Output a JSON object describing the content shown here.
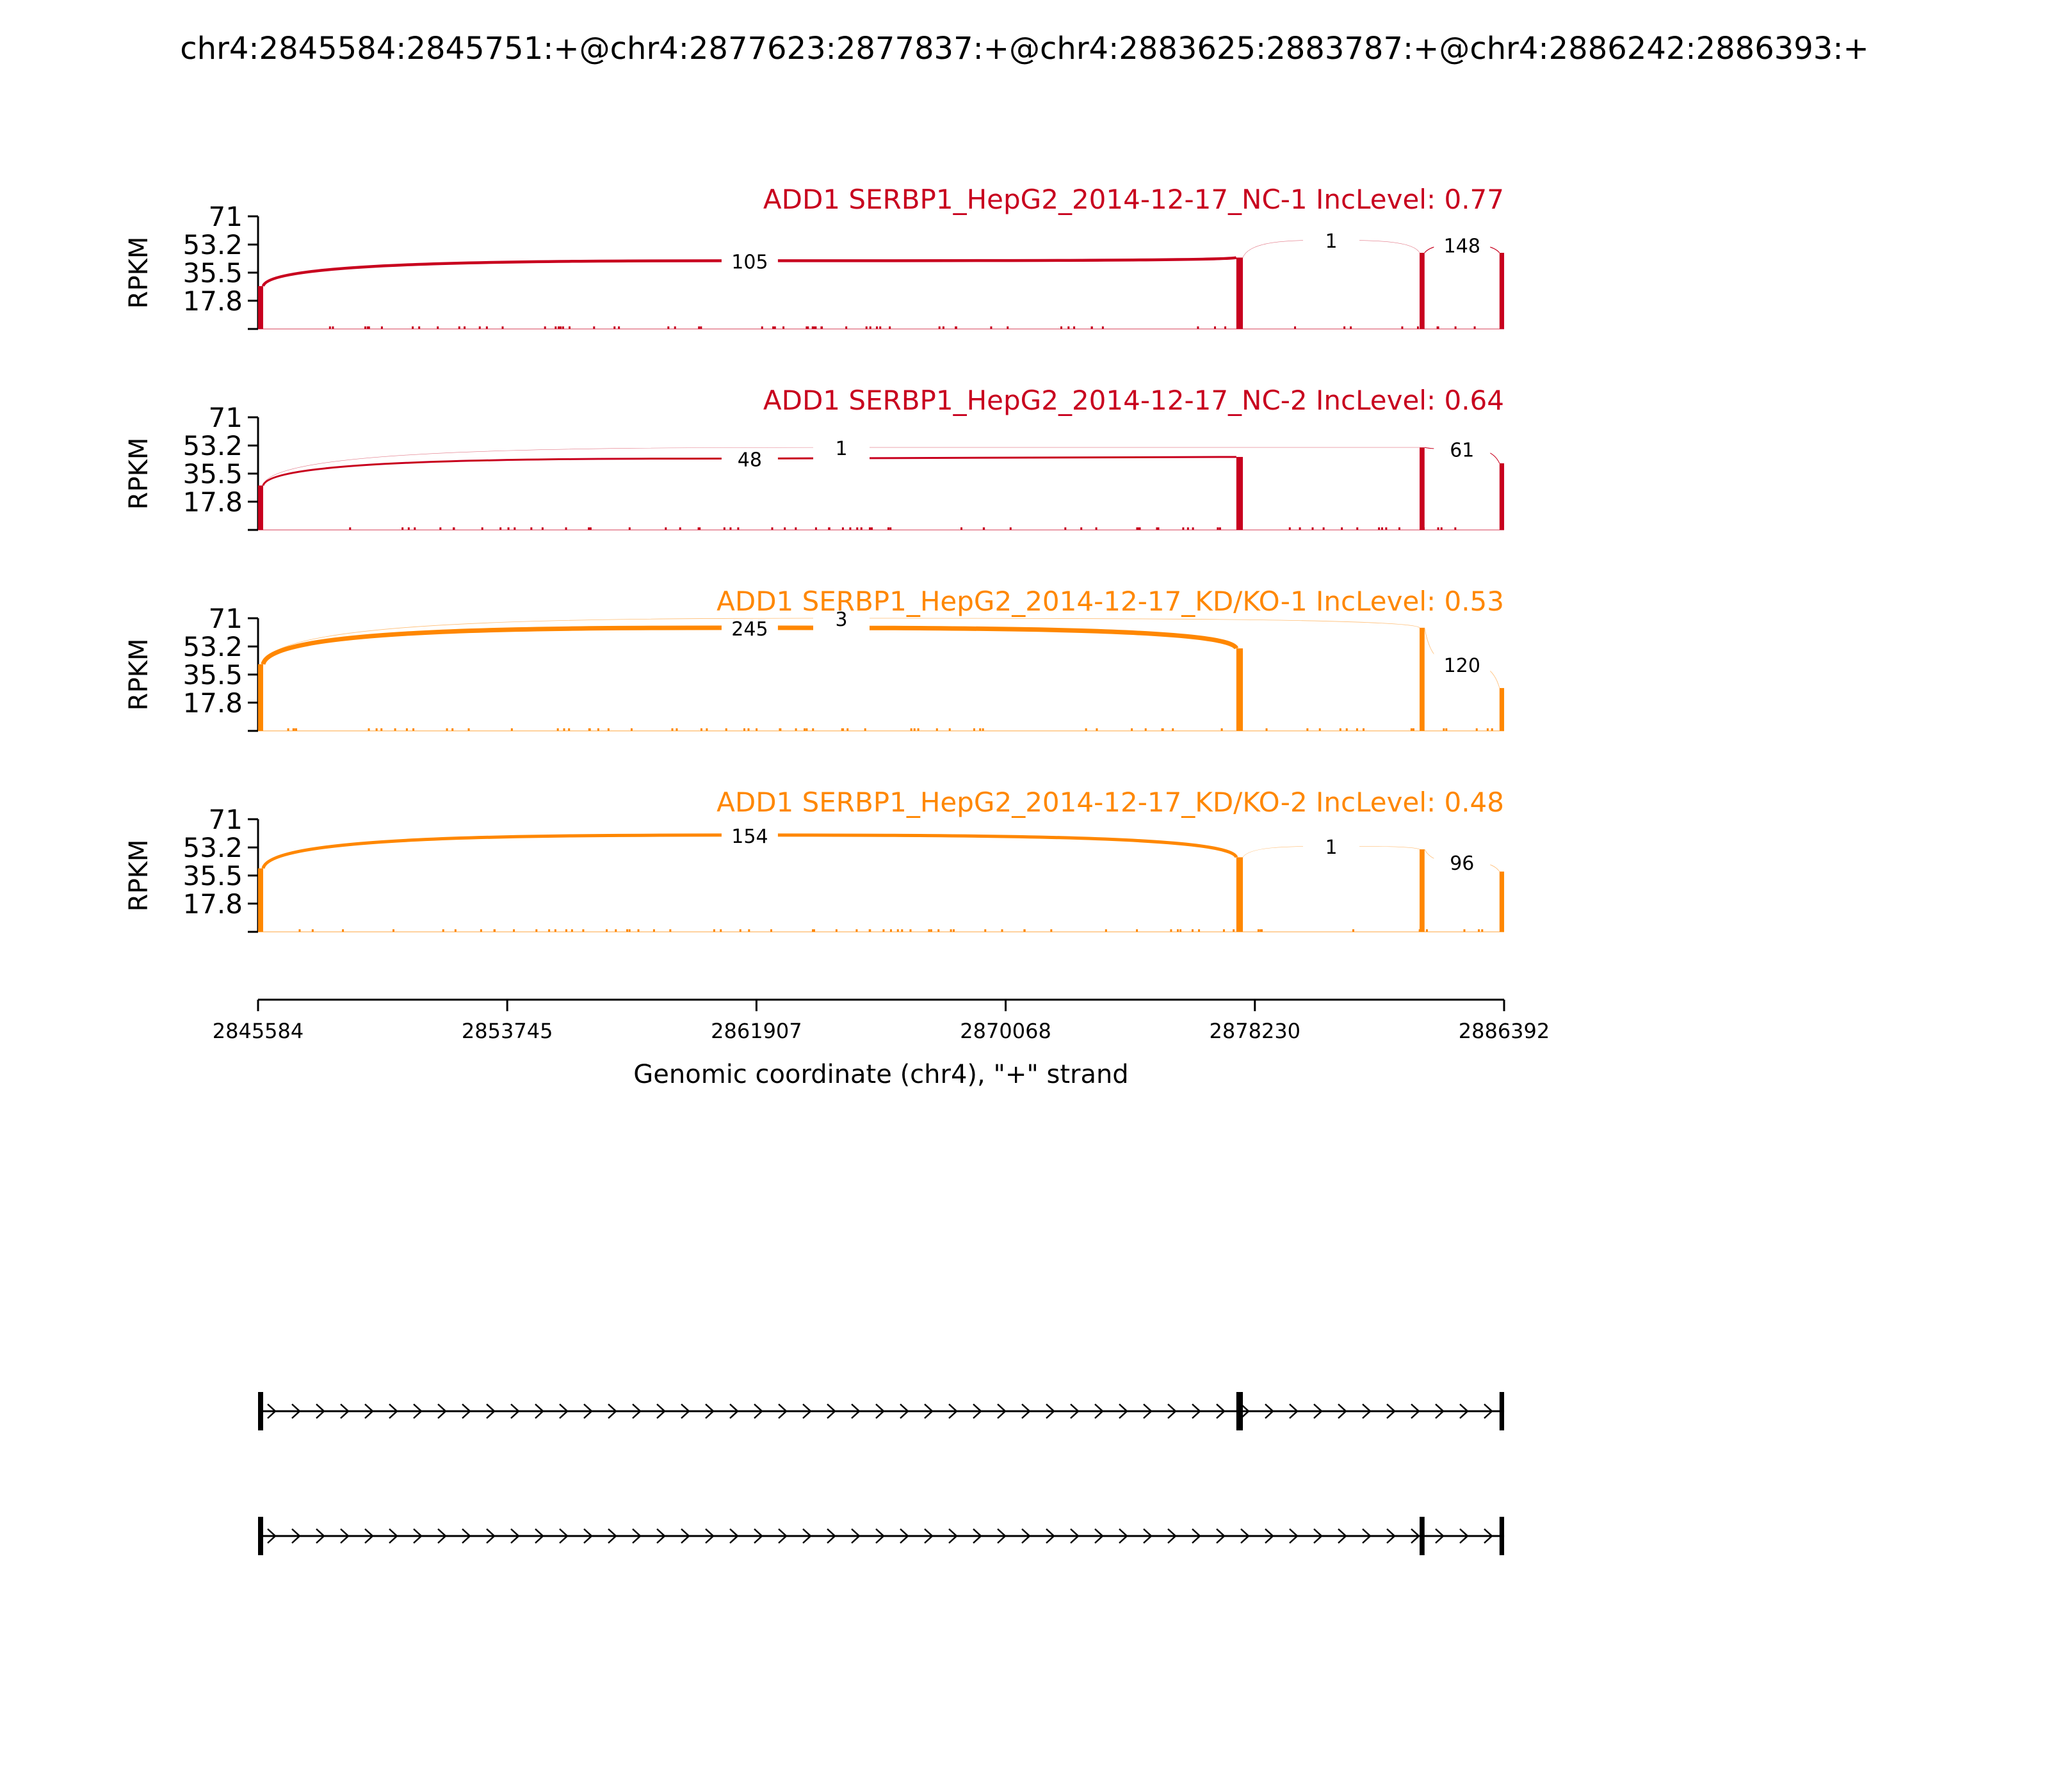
{
  "chart_data": {
    "type": "sashimi",
    "title": "chr4:2845584:2845751:+@chr4:2877623:2877837:+@chr4:2883625:2883787:+@chr4:2886242:2886393:+",
    "ylabel": "RPKM",
    "xlabel": "Genomic coordinate (chr4), \"+\" strand",
    "xlim": [
      2845584,
      2886392
    ],
    "ylim": [
      0,
      71
    ],
    "y_ticks": [
      "71",
      "53.2",
      "35.5",
      "17.8"
    ],
    "x_ticks": [
      "2845584",
      "2853745",
      "2861907",
      "2870068",
      "2878230",
      "2886392"
    ],
    "exons": [
      [
        2845584,
        2845751
      ],
      [
        2877623,
        2877837
      ],
      [
        2883625,
        2883787
      ],
      [
        2886242,
        2886393
      ]
    ],
    "tracks": [
      {
        "label": "ADD1 SERBP1_HepG2_2014-12-17_NC-1 IncLevel: 0.77",
        "color": "#c8001e",
        "exon_heights": [
          27,
          45,
          48,
          48
        ],
        "junctions": [
          {
            "from": 2845751,
            "to": 2877623,
            "count": "105",
            "y": 43,
            "w": 4.5
          },
          {
            "from": 2877837,
            "to": 2883625,
            "count": "1",
            "y": 56,
            "w": 0.6
          },
          {
            "from": 2883787,
            "to": 2886242,
            "count": "148",
            "y": 53,
            "w": 1.2
          }
        ]
      },
      {
        "label": "ADD1 SERBP1_HepG2_2014-12-17_NC-2 IncLevel: 0.64",
        "color": "#c8001e",
        "exon_heights": [
          28,
          46,
          52,
          42
        ],
        "junctions": [
          {
            "from": 2845751,
            "to": 2877623,
            "count": "48",
            "y": 45,
            "w": 3.0
          },
          {
            "from": 2845751,
            "to": 2883625,
            "count": "1",
            "y": 52,
            "w": 0.6
          },
          {
            "from": 2883787,
            "to": 2886242,
            "count": "61",
            "y": 51,
            "w": 1.0
          }
        ]
      },
      {
        "label": "ADD1 SERBP1_HepG2_2014-12-17_KD/KO-1 IncLevel: 0.53",
        "color": "#ff8700",
        "exon_heights": [
          42,
          52,
          65,
          27
        ],
        "junctions": [
          {
            "from": 2845751,
            "to": 2877623,
            "count": "245",
            "y": 65,
            "w": 7.0
          },
          {
            "from": 2845751,
            "to": 2883625,
            "count": "3",
            "y": 71,
            "w": 0.8
          },
          {
            "from": 2883787,
            "to": 2886242,
            "count": "120",
            "y": 42,
            "w": 0.8
          }
        ]
      },
      {
        "label": "ADD1 SERBP1_HepG2_2014-12-17_KD/KO-2 IncLevel: 0.48",
        "color": "#ff8700",
        "exon_heights": [
          40,
          47,
          52,
          38
        ],
        "junctions": [
          {
            "from": 2845751,
            "to": 2877623,
            "count": "154",
            "y": 61,
            "w": 5.0
          },
          {
            "from": 2877837,
            "to": 2883625,
            "count": "1",
            "y": 54,
            "w": 0.6
          },
          {
            "from": 2883787,
            "to": 2886242,
            "count": "96",
            "y": 44,
            "w": 0.8
          }
        ]
      }
    ],
    "isoforms": [
      [
        [
          2845584,
          2845751
        ],
        [
          2877623,
          2877837
        ],
        [
          2886242,
          2886393
        ]
      ],
      [
        [
          2845584,
          2845751
        ],
        [
          2883625,
          2883787
        ],
        [
          2886242,
          2886393
        ]
      ]
    ]
  }
}
